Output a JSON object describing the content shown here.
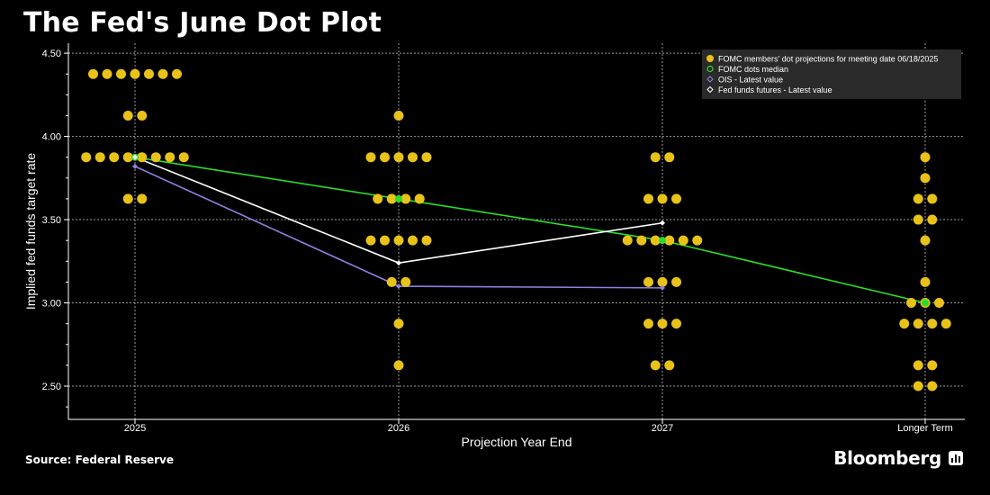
{
  "title": "The Fed's June Dot Plot",
  "source": "Source: Federal Reserve",
  "brand": "Bloomberg",
  "colors": {
    "background": "#000000",
    "dots": "#e8c21a",
    "median": "#2bdc2b",
    "ois": "#8f7fe0",
    "futures": "#ffffff",
    "grid": "#9a9a9a",
    "legend_bg": "#2a2a2a"
  },
  "chart_data": {
    "type": "scatter",
    "xlabel": "Projection Year End",
    "ylabel": "Implied fed funds target rate",
    "categories": [
      "2025",
      "2026",
      "2027",
      "Longer Term"
    ],
    "ylim": [
      2.3,
      4.56
    ],
    "yticks": [
      "2.50",
      "3.00",
      "3.50",
      "4.00",
      "4.50"
    ],
    "grid": true,
    "legend_position": "top-right",
    "legend": [
      {
        "label": "FOMC members' dot projections for meeting date 06/18/2025",
        "marker": "dot"
      },
      {
        "label": "FOMC dots median",
        "marker": "ring"
      },
      {
        "label": "OIS - Latest value",
        "marker": "diamond-ois"
      },
      {
        "label": "Fed funds futures - Latest value",
        "marker": "diamond-futures"
      }
    ],
    "dots": [
      {
        "category": "2025",
        "values": [
          {
            "y": 4.375,
            "count": 7
          },
          {
            "y": 4.125,
            "count": 2
          },
          {
            "y": 3.875,
            "count": 8
          },
          {
            "y": 3.625,
            "count": 2
          }
        ]
      },
      {
        "category": "2026",
        "values": [
          {
            "y": 4.125,
            "count": 1
          },
          {
            "y": 3.875,
            "count": 5
          },
          {
            "y": 3.625,
            "count": 4
          },
          {
            "y": 3.375,
            "count": 5
          },
          {
            "y": 3.125,
            "count": 2
          },
          {
            "y": 2.875,
            "count": 1
          },
          {
            "y": 2.625,
            "count": 1
          }
        ]
      },
      {
        "category": "2027",
        "values": [
          {
            "y": 3.875,
            "count": 2
          },
          {
            "y": 3.625,
            "count": 3
          },
          {
            "y": 3.375,
            "count": 6
          },
          {
            "y": 3.125,
            "count": 3
          },
          {
            "y": 2.875,
            "count": 3
          },
          {
            "y": 2.625,
            "count": 2
          }
        ]
      },
      {
        "category": "Longer Term",
        "values": [
          {
            "y": 3.875,
            "count": 1
          },
          {
            "y": 3.75,
            "count": 1
          },
          {
            "y": 3.625,
            "count": 2
          },
          {
            "y": 3.5,
            "count": 2
          },
          {
            "y": 3.375,
            "count": 1
          },
          {
            "y": 3.125,
            "count": 1
          },
          {
            "y": 3.0,
            "count": 3
          },
          {
            "y": 2.875,
            "count": 4
          },
          {
            "y": 2.625,
            "count": 2
          },
          {
            "y": 2.5,
            "count": 2
          }
        ]
      }
    ],
    "series": [
      {
        "key": "median",
        "categories": [
          "2025",
          "2026",
          "2027",
          "Longer Term"
        ],
        "values": [
          3.875,
          3.625,
          3.375,
          3.0
        ]
      },
      {
        "key": "ois",
        "categories": [
          "2025",
          "2026",
          "2027"
        ],
        "values": [
          3.82,
          3.1,
          3.09
        ]
      },
      {
        "key": "futures",
        "categories": [
          "2025",
          "2026",
          "2027"
        ],
        "values": [
          3.875,
          3.24,
          3.48
        ]
      }
    ]
  }
}
